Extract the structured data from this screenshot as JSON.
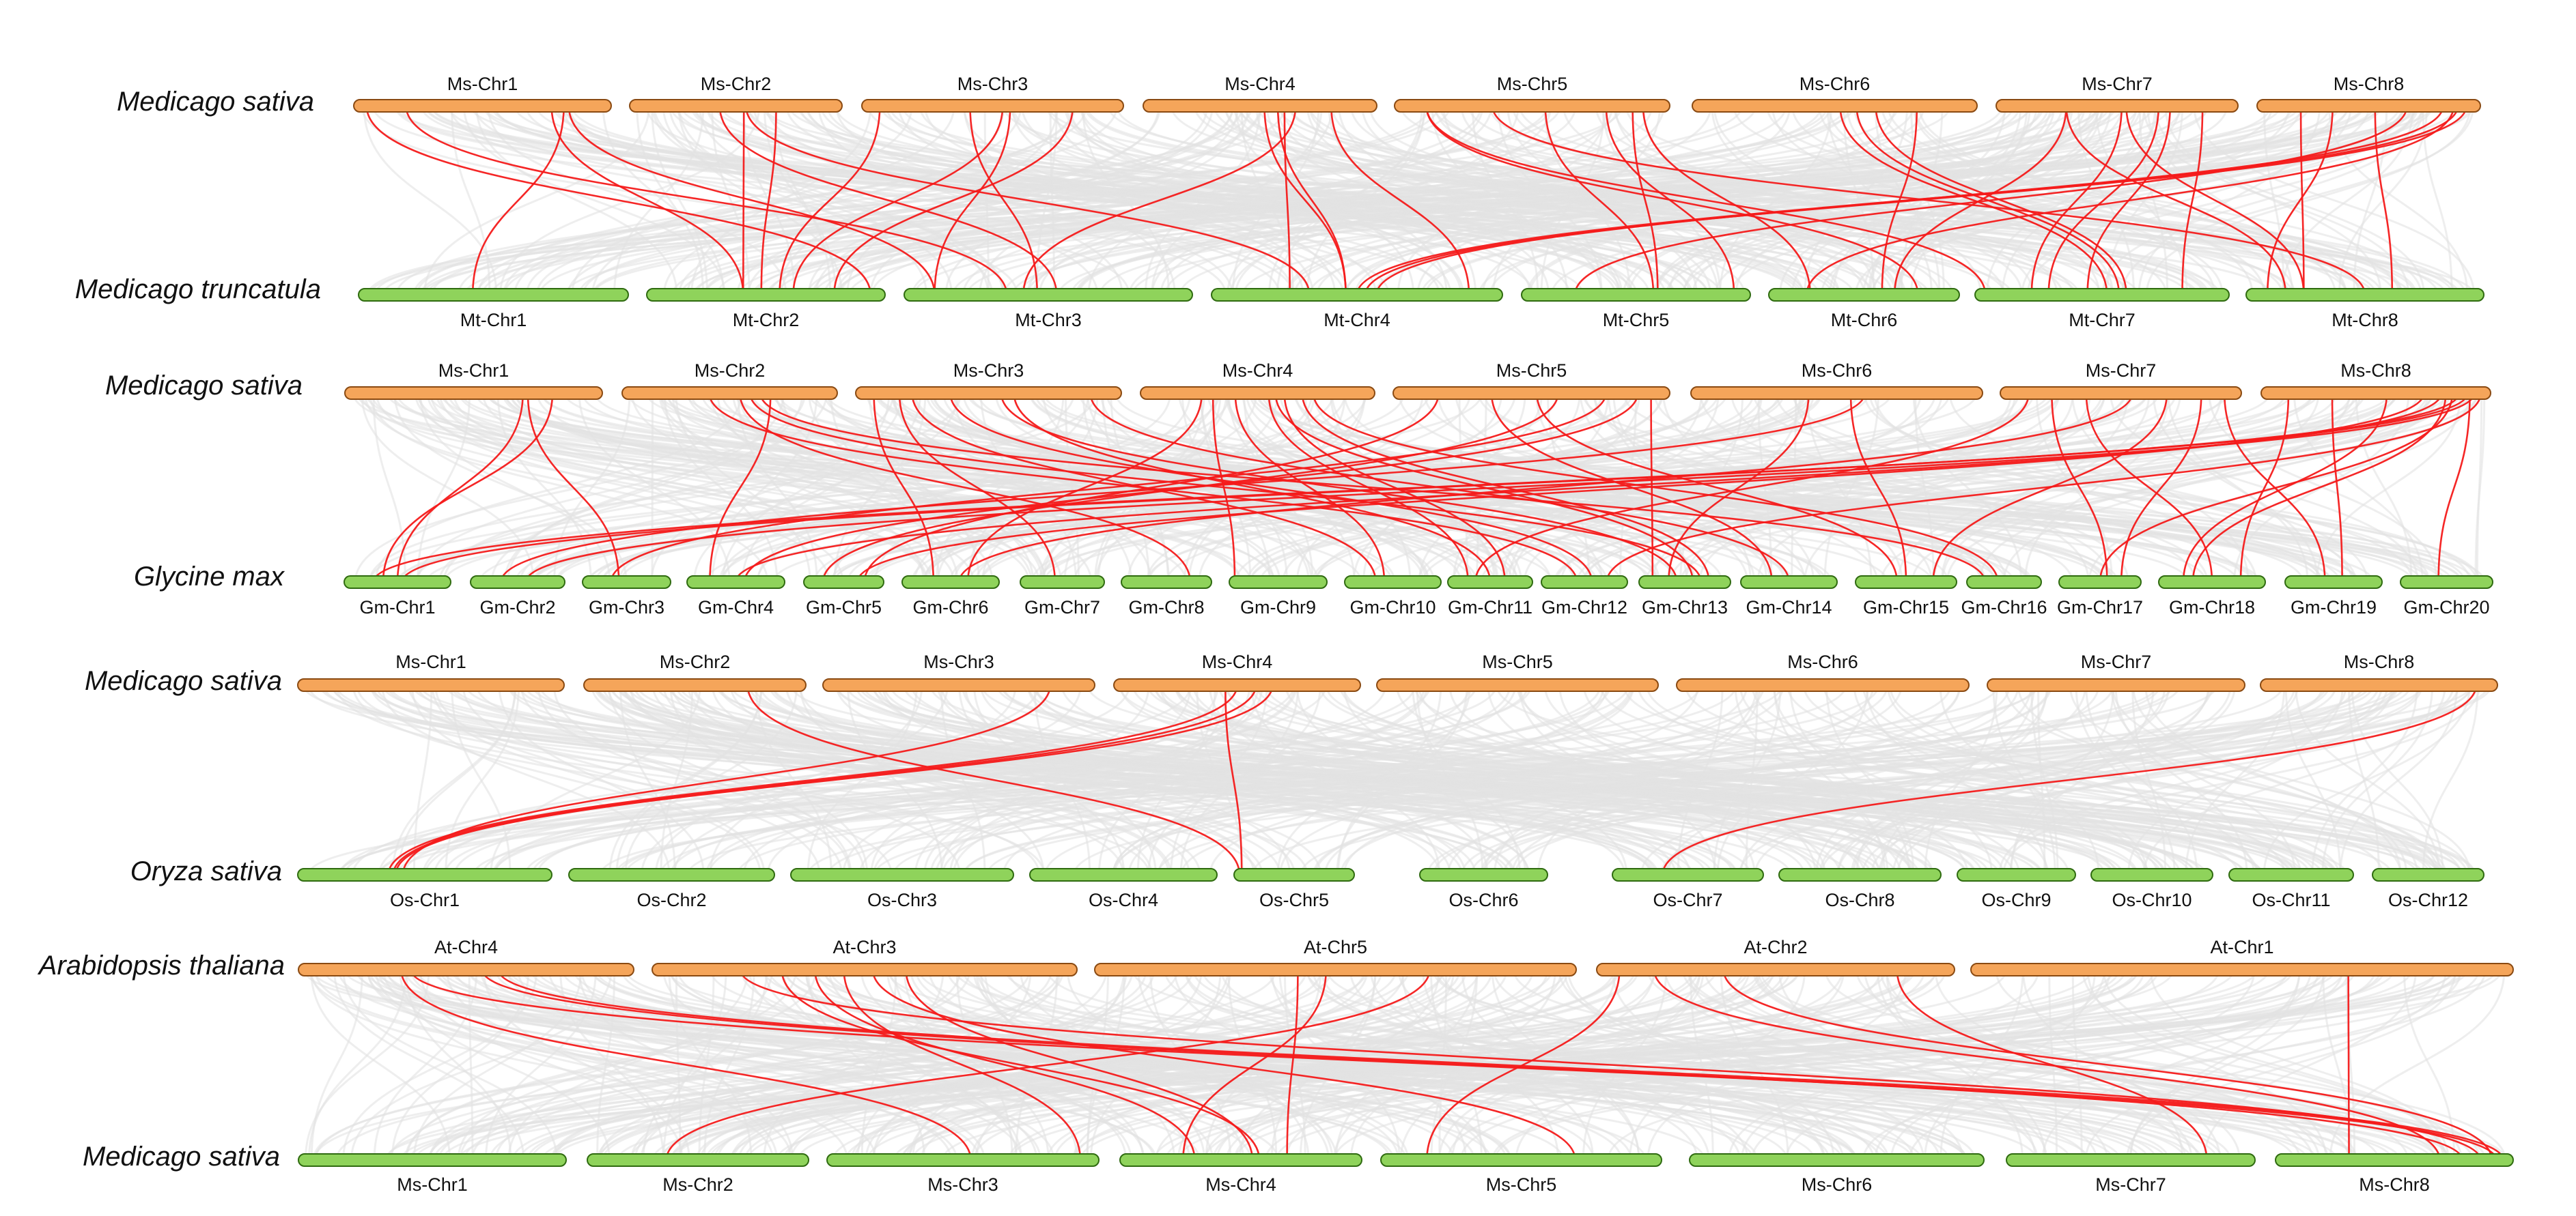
{
  "colors": {
    "top_chromosome": "#f5a55a",
    "bottom_chromosome": "#8fd35b",
    "highlight_link": "#f41a1a",
    "background_link": "#e3e3e3"
  },
  "panels": [
    {
      "top_species": "Medicago sativa",
      "bottom_species": "Medicago truncatula",
      "top_chromosomes": [
        "Ms-Chr1",
        "Ms-Chr2",
        "Ms-Chr3",
        "Ms-Chr4",
        "Ms-Chr5",
        "Ms-Chr6",
        "Ms-Chr7",
        "Ms-Chr8"
      ],
      "bottom_chromosomes": [
        "Mt-Chr1",
        "Mt-Chr2",
        "Mt-Chr3",
        "Mt-Chr4",
        "Mt-Chr5",
        "Mt-Chr6",
        "Mt-Chr7",
        "Mt-Chr8"
      ]
    },
    {
      "top_species": "Medicago sativa",
      "bottom_species": "Glycine max",
      "top_chromosomes": [
        "Ms-Chr1",
        "Ms-Chr2",
        "Ms-Chr3",
        "Ms-Chr4",
        "Ms-Chr5",
        "Ms-Chr6",
        "Ms-Chr7",
        "Ms-Chr8"
      ],
      "bottom_chromosomes": [
        "Gm-Chr1",
        "Gm-Chr2",
        "Gm-Chr3",
        "Gm-Chr4",
        "Gm-Chr5",
        "Gm-Chr6",
        "Gm-Chr7",
        "Gm-Chr8",
        "Gm-Chr9",
        "Gm-Chr10",
        "Gm-Chr11",
        "Gm-Chr12",
        "Gm-Chr13",
        "Gm-Chr14",
        "Gm-Chr15",
        "Gm-Chr16",
        "Gm-Chr17",
        "Gm-Chr18",
        "Gm-Chr19",
        "Gm-Chr20"
      ]
    },
    {
      "top_species": "Medicago sativa",
      "bottom_species": "Oryza sativa",
      "top_chromosomes": [
        "Ms-Chr1",
        "Ms-Chr2",
        "Ms-Chr3",
        "Ms-Chr4",
        "Ms-Chr5",
        "Ms-Chr6",
        "Ms-Chr7",
        "Ms-Chr8"
      ],
      "bottom_chromosomes": [
        "Os-Chr1",
        "Os-Chr2",
        "Os-Chr3",
        "Os-Chr4",
        "Os-Chr5",
        "Os-Chr6",
        "Os-Chr7",
        "Os-Chr8",
        "Os-Chr9",
        "Os-Chr10",
        "Os-Chr11",
        "Os-Chr12"
      ]
    },
    {
      "top_species": "Arabidopsis thaliana",
      "bottom_species": "Medicago sativa",
      "top_chromosomes": [
        "At-Chr4",
        "At-Chr3",
        "At-Chr5",
        "At-Chr2",
        "At-Chr1"
      ],
      "bottom_chromosomes": [
        "Ms-Chr1",
        "Ms-Chr2",
        "Ms-Chr3",
        "Ms-Chr4",
        "Ms-Chr5",
        "Ms-Chr6",
        "Ms-Chr7",
        "Ms-Chr8"
      ]
    }
  ]
}
